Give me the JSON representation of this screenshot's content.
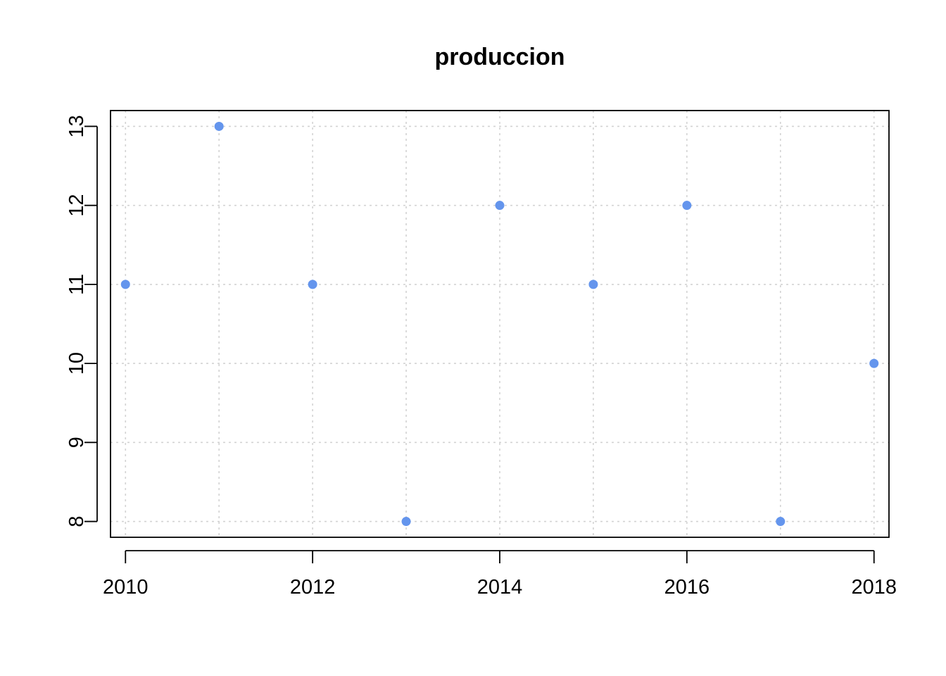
{
  "chart_data": {
    "type": "scatter",
    "title": "produccion",
    "xlabel": "",
    "ylabel": "",
    "x": [
      2010,
      2011,
      2012,
      2013,
      2014,
      2015,
      2016,
      2017,
      2018
    ],
    "y": [
      11,
      13,
      11,
      8,
      12,
      11,
      12,
      8,
      10
    ],
    "xlim": [
      2009.84,
      2018.16
    ],
    "ylim": [
      7.8,
      13.2
    ],
    "x_ticks": [
      2010,
      2012,
      2014,
      2016,
      2018
    ],
    "y_ticks": [
      8,
      9,
      10,
      11,
      12,
      13
    ],
    "grid": true,
    "point_color": "#6495ED",
    "grid_color": "#D3D3D3"
  }
}
